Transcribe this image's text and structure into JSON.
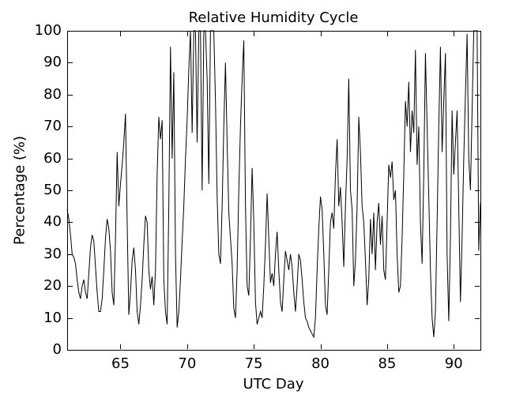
{
  "figure": {
    "background": "#ffffff"
  },
  "chart_data": {
    "type": "line",
    "title": "Relative Humidity Cycle",
    "xlabel": "UTC Day",
    "ylabel": "Percentage (%)",
    "xlim": [
      61,
      92
    ],
    "ylim": [
      0,
      100
    ],
    "x_ticks": [
      65,
      70,
      75,
      80,
      85,
      90
    ],
    "y_ticks": [
      0,
      10,
      20,
      30,
      40,
      50,
      60,
      70,
      80,
      90,
      100
    ],
    "grid": false,
    "legend": "none",
    "box": true,
    "line_color": "#000000",
    "axis_color": "#000000",
    "series": [
      {
        "name": "relative-humidity",
        "x_start": 61,
        "x_step": 0.125,
        "values": [
          44,
          41,
          36,
          30,
          29,
          27,
          22,
          18,
          16,
          20,
          22,
          18,
          16,
          24,
          32,
          36,
          34,
          26,
          18,
          12,
          12,
          16,
          25,
          35,
          41,
          38,
          31,
          18,
          14,
          35,
          62,
          45,
          52,
          58,
          65,
          74,
          40,
          11,
          18,
          28,
          32,
          25,
          12,
          8,
          14,
          22,
          33,
          42,
          40,
          25,
          19,
          23,
          14,
          25,
          55,
          73,
          66,
          72,
          22,
          12,
          8,
          45,
          95,
          60,
          87,
          30,
          7,
          12,
          22,
          34,
          45,
          60,
          72,
          88,
          100,
          68,
          100,
          100,
          65,
          100,
          100,
          50,
          100,
          100,
          85,
          52,
          100,
          100,
          100,
          78,
          48,
          30,
          27,
          45,
          70,
          90,
          65,
          43,
          35,
          27,
          13,
          10,
          25,
          50,
          70,
          85,
          97,
          45,
          20,
          17,
          35,
          57,
          40,
          15,
          8,
          10,
          12,
          10,
          20,
          33,
          49,
          35,
          21,
          24,
          20,
          30,
          37,
          25,
          15,
          12,
          22,
          31,
          28,
          25,
          30,
          26,
          18,
          12,
          20,
          30,
          28,
          22,
          15,
          10,
          9,
          7,
          6,
          5,
          4,
          10,
          25,
          38,
          48,
          44,
          30,
          14,
          11,
          25,
          40,
          43,
          38,
          55,
          66,
          45,
          51,
          40,
          26,
          45,
          60,
          85,
          50,
          44,
          20,
          28,
          45,
          73,
          62,
          45,
          40,
          28,
          14,
          22,
          41,
          30,
          43,
          25,
          40,
          46,
          33,
          42,
          25,
          22,
          40,
          58,
          54,
          59,
          47,
          50,
          30,
          18,
          20,
          35,
          55,
          78,
          70,
          84,
          62,
          75,
          68,
          94,
          58,
          70,
          40,
          27,
          55,
          93,
          70,
          48,
          25,
          10,
          4,
          12,
          40,
          70,
          95,
          62,
          78,
          93,
          30,
          9,
          35,
          75,
          55,
          65,
          75,
          45,
          15,
          35,
          60,
          80,
          99,
          60,
          50,
          75,
          100,
          100,
          100,
          31,
          46
        ]
      }
    ]
  }
}
